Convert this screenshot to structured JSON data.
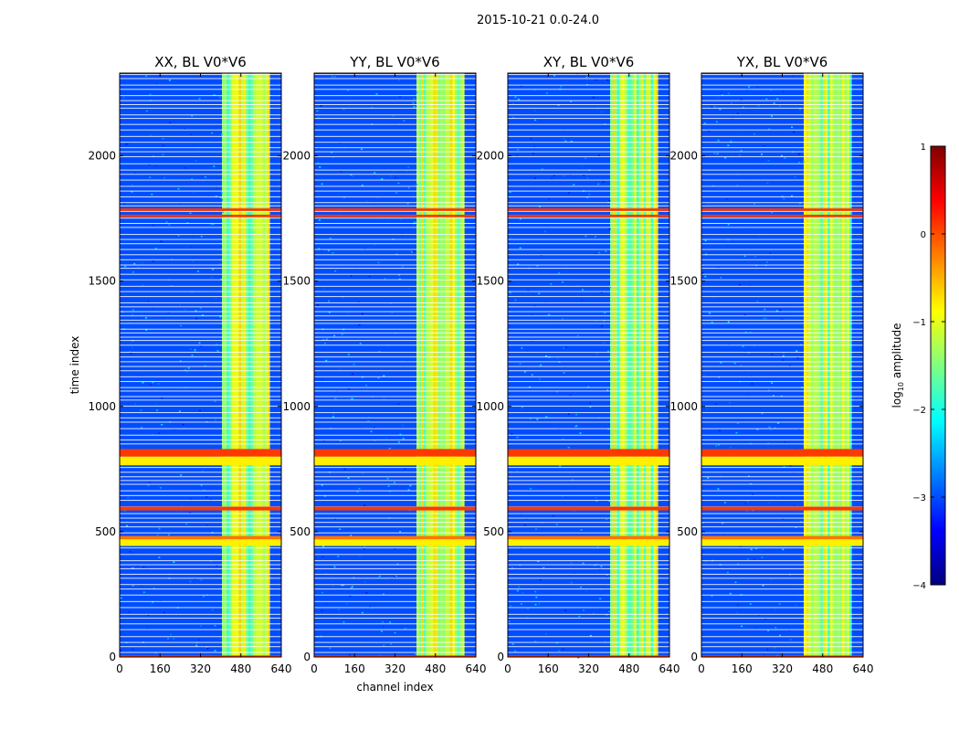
{
  "figure": {
    "suptitle": "2015-10-21 0.0-24.0"
  },
  "colorbar": {
    "label": "log",
    "label_sub": "10",
    "label_rest": " amplitude",
    "range": [
      -4,
      1
    ],
    "ticks": [
      1,
      0,
      -1,
      -2,
      -3,
      -4
    ],
    "tick_labels": [
      "1",
      "0",
      "−1",
      "−2",
      "−3",
      "−4"
    ],
    "colormap": "jet",
    "colors": [
      "#00007f",
      "#0000ff",
      "#007fff",
      "#00ffff",
      "#7fff7f",
      "#ffff00",
      "#ff7f00",
      "#ff0000",
      "#7f0000"
    ]
  },
  "chart_data": [
    {
      "type": "heatmap",
      "title": "XX, BL V0*V6",
      "xlabel": "",
      "ylabel": "time index",
      "xlim": [
        0,
        640
      ],
      "ylim": [
        0,
        2330
      ],
      "xticks": [
        0,
        160,
        320,
        480,
        640
      ],
      "yticks": [
        0,
        500,
        1000,
        1500,
        2000
      ],
      "xtick_labels": [
        "0",
        "160",
        "320",
        "480",
        "640"
      ],
      "ytick_labels": [
        "0",
        "500",
        "1000",
        "1500",
        "2000"
      ],
      "background_log10_amplitude": -3.0,
      "high_channel_range": [
        405,
        595
      ],
      "high_channel_log10_amplitude": -1.3,
      "flagged_time_bands": [
        {
          "range": [
            0,
            6
          ],
          "log10_amplitude": 0.1
        },
        {
          "range": [
            443,
            470
          ],
          "log10_amplitude": -0.8
        },
        {
          "range": [
            470,
            483
          ],
          "log10_amplitude": -0.2
        },
        {
          "range": [
            585,
            600
          ],
          "log10_amplitude": 0.1
        },
        {
          "range": [
            765,
            800
          ],
          "log10_amplitude": -0.8
        },
        {
          "range": [
            800,
            830
          ],
          "log10_amplitude": 0.1
        },
        {
          "range": [
            1755,
            1765
          ],
          "log10_amplitude": 0.1
        },
        {
          "range": [
            1780,
            1790
          ],
          "log10_amplitude": 0.1
        }
      ]
    },
    {
      "type": "heatmap",
      "title": "YY, BL V0*V6",
      "xlabel": "channel index",
      "ylabel": "",
      "xlim": [
        0,
        640
      ],
      "ylim": [
        0,
        2330
      ],
      "xticks": [
        0,
        160,
        320,
        480,
        640
      ],
      "yticks": [
        0,
        500,
        1000,
        1500,
        2000
      ],
      "xtick_labels": [
        "0",
        "160",
        "320",
        "480",
        "640"
      ],
      "ytick_labels": [
        "0",
        "500",
        "1000",
        "1500",
        "2000"
      ],
      "background_log10_amplitude": -3.0,
      "high_channel_range": [
        405,
        595
      ],
      "high_channel_log10_amplitude": -1.3,
      "flagged_time_bands": [
        {
          "range": [
            0,
            6
          ],
          "log10_amplitude": 0.1
        },
        {
          "range": [
            443,
            470
          ],
          "log10_amplitude": -0.8
        },
        {
          "range": [
            470,
            483
          ],
          "log10_amplitude": -0.2
        },
        {
          "range": [
            585,
            600
          ],
          "log10_amplitude": 0.1
        },
        {
          "range": [
            765,
            800
          ],
          "log10_amplitude": -0.8
        },
        {
          "range": [
            800,
            830
          ],
          "log10_amplitude": 0.1
        },
        {
          "range": [
            1755,
            1765
          ],
          "log10_amplitude": 0.1
        },
        {
          "range": [
            1780,
            1790
          ],
          "log10_amplitude": 0.1
        }
      ]
    },
    {
      "type": "heatmap",
      "title": "XY, BL V0*V6",
      "xlabel": "",
      "ylabel": "",
      "xlim": [
        0,
        640
      ],
      "ylim": [
        0,
        2330
      ],
      "xticks": [
        0,
        160,
        320,
        480,
        640
      ],
      "yticks": [
        0,
        500,
        1000,
        1500,
        2000
      ],
      "xtick_labels": [
        "0",
        "160",
        "320",
        "480",
        "640"
      ],
      "ytick_labels": [
        "0",
        "500",
        "1000",
        "1500",
        "2000"
      ],
      "background_log10_amplitude": -3.0,
      "high_channel_range": [
        405,
        595
      ],
      "high_channel_log10_amplitude": -1.3,
      "flagged_time_bands": [
        {
          "range": [
            0,
            6
          ],
          "log10_amplitude": 0.1
        },
        {
          "range": [
            443,
            470
          ],
          "log10_amplitude": -0.8
        },
        {
          "range": [
            470,
            483
          ],
          "log10_amplitude": -0.2
        },
        {
          "range": [
            585,
            600
          ],
          "log10_amplitude": 0.1
        },
        {
          "range": [
            765,
            800
          ],
          "log10_amplitude": -0.8
        },
        {
          "range": [
            800,
            830
          ],
          "log10_amplitude": 0.1
        },
        {
          "range": [
            1755,
            1765
          ],
          "log10_amplitude": 0.1
        },
        {
          "range": [
            1780,
            1790
          ],
          "log10_amplitude": 0.1
        }
      ]
    },
    {
      "type": "heatmap",
      "title": "YX, BL V0*V6",
      "xlabel": "",
      "ylabel": "",
      "xlim": [
        0,
        640
      ],
      "ylim": [
        0,
        2330
      ],
      "xticks": [
        0,
        160,
        320,
        480,
        640
      ],
      "yticks": [
        0,
        500,
        1000,
        1500,
        2000
      ],
      "xtick_labels": [
        "0",
        "160",
        "320",
        "480",
        "640"
      ],
      "ytick_labels": [
        "0",
        "500",
        "1000",
        "1500",
        "2000"
      ],
      "background_log10_amplitude": -3.0,
      "high_channel_range": [
        405,
        595
      ],
      "high_channel_log10_amplitude": -1.3,
      "flagged_time_bands": [
        {
          "range": [
            0,
            6
          ],
          "log10_amplitude": 0.1
        },
        {
          "range": [
            443,
            470
          ],
          "log10_amplitude": -0.8
        },
        {
          "range": [
            470,
            483
          ],
          "log10_amplitude": -0.2
        },
        {
          "range": [
            585,
            600
          ],
          "log10_amplitude": 0.1
        },
        {
          "range": [
            765,
            800
          ],
          "log10_amplitude": -0.8
        },
        {
          "range": [
            800,
            830
          ],
          "log10_amplitude": 0.1
        },
        {
          "range": [
            1755,
            1765
          ],
          "log10_amplitude": 0.1
        },
        {
          "range": [
            1780,
            1790
          ],
          "log10_amplitude": 0.1
        }
      ]
    }
  ]
}
